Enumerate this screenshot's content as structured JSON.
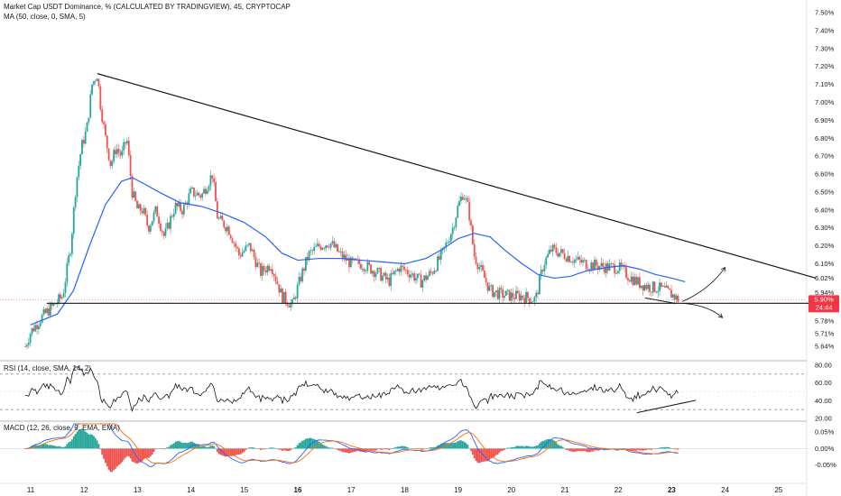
{
  "header": {
    "main_title": "Market Cap USDT Dominance, % (CALCULATED BY TRADINGVIEW), 45, CRYPTOCAP",
    "ma_label": "MA (50, close, 0, SMA, 5)",
    "rsi_label": "RSI (14, close, SMA, 14, 2)",
    "macd_label": "MACD (12, 26, close, 9, EMA, EMA)"
  },
  "price_tag": {
    "value": "5.90%",
    "countdown": "24:44",
    "color": "#f23645"
  },
  "colors": {
    "up": "#26a69a",
    "down": "#ef5350",
    "ma": "#2962ff",
    "trendline": "#131722",
    "rsi": "#131722",
    "macd": "#2962ff",
    "signal": "#ff6d00",
    "hist_up": "#26a69a",
    "hist_down": "#ef5350"
  },
  "chart_data": [
    {
      "type": "candlestick",
      "title": "Market Cap USDT Dominance, % (CALCULATED BY TRADINGVIEW), 45, CRYPTOCAP",
      "x_ticks": [
        "11",
        "12",
        "13",
        "14",
        "15",
        "16",
        "17",
        "18",
        "19",
        "20",
        "21",
        "22",
        "23",
        "24",
        "25"
      ],
      "bold_ticks": [
        "16",
        "23"
      ],
      "y_ticks": [
        "7.50%",
        "7.40%",
        "7.30%",
        "7.20%",
        "7.10%",
        "7.00%",
        "6.90%",
        "6.80%",
        "6.70%",
        "6.60%",
        "6.50%",
        "6.40%",
        "6.30%",
        "6.20%",
        "6.10%",
        "6.02%",
        "5.94%",
        "5.86%",
        "5.78%",
        "5.71%",
        "5.64%"
      ],
      "ylim": [
        5.6,
        7.52
      ],
      "close_path": [
        [
          10.9,
          5.64
        ],
        [
          11.0,
          5.72
        ],
        [
          11.2,
          5.8
        ],
        [
          11.4,
          5.86
        ],
        [
          11.6,
          5.92
        ],
        [
          11.75,
          6.2
        ],
        [
          11.85,
          6.55
        ],
        [
          11.95,
          6.75
        ],
        [
          12.05,
          6.85
        ],
        [
          12.15,
          7.1
        ],
        [
          12.25,
          7.16
        ],
        [
          12.3,
          7.0
        ],
        [
          12.4,
          6.8
        ],
        [
          12.5,
          6.65
        ],
        [
          12.6,
          6.75
        ],
        [
          12.7,
          6.7
        ],
        [
          12.8,
          6.8
        ],
        [
          12.9,
          6.5
        ],
        [
          13.0,
          6.4
        ],
        [
          13.1,
          6.4
        ],
        [
          13.2,
          6.3
        ],
        [
          13.35,
          6.4
        ],
        [
          13.5,
          6.25
        ],
        [
          13.7,
          6.42
        ],
        [
          13.85,
          6.4
        ],
        [
          14.0,
          6.5
        ],
        [
          14.2,
          6.48
        ],
        [
          14.4,
          6.6
        ],
        [
          14.5,
          6.35
        ],
        [
          14.7,
          6.3
        ],
        [
          14.9,
          6.15
        ],
        [
          15.1,
          6.2
        ],
        [
          15.3,
          6.05
        ],
        [
          15.5,
          6.1
        ],
        [
          15.7,
          5.92
        ],
        [
          15.9,
          5.87
        ],
        [
          16.05,
          6.02
        ],
        [
          16.2,
          6.15
        ],
        [
          16.4,
          6.2
        ],
        [
          16.6,
          6.22
        ],
        [
          16.8,
          6.15
        ],
        [
          17.0,
          6.1
        ],
        [
          17.2,
          6.1
        ],
        [
          17.5,
          6.05
        ],
        [
          17.7,
          6.0
        ],
        [
          17.9,
          6.08
        ],
        [
          18.1,
          6.05
        ],
        [
          18.3,
          6.0
        ],
        [
          18.5,
          6.05
        ],
        [
          18.7,
          6.15
        ],
        [
          18.9,
          6.3
        ],
        [
          19.0,
          6.42
        ],
        [
          19.1,
          6.5
        ],
        [
          19.2,
          6.4
        ],
        [
          19.3,
          6.15
        ],
        [
          19.45,
          6.05
        ],
        [
          19.6,
          5.95
        ],
        [
          19.8,
          5.93
        ],
        [
          20.0,
          5.92
        ],
        [
          20.2,
          5.92
        ],
        [
          20.45,
          5.9
        ],
        [
          20.6,
          6.1
        ],
        [
          20.75,
          6.18
        ],
        [
          21.0,
          6.15
        ],
        [
          21.2,
          6.12
        ],
        [
          21.4,
          6.1
        ],
        [
          21.6,
          6.09
        ],
        [
          21.8,
          6.08
        ],
        [
          22.0,
          6.08
        ],
        [
          22.2,
          6.03
        ],
        [
          22.4,
          5.99
        ],
        [
          22.6,
          5.97
        ],
        [
          22.8,
          5.96
        ],
        [
          23.0,
          5.93
        ],
        [
          23.12,
          5.9
        ]
      ],
      "ma50_path": [
        [
          11.0,
          5.76
        ],
        [
          11.5,
          5.82
        ],
        [
          11.8,
          5.95
        ],
        [
          12.1,
          6.2
        ],
        [
          12.4,
          6.43
        ],
        [
          12.7,
          6.56
        ],
        [
          12.9,
          6.58
        ],
        [
          13.1,
          6.55
        ],
        [
          13.4,
          6.5
        ],
        [
          13.8,
          6.44
        ],
        [
          14.2,
          6.42
        ],
        [
          14.6,
          6.38
        ],
        [
          15.0,
          6.33
        ],
        [
          15.4,
          6.25
        ],
        [
          15.7,
          6.16
        ],
        [
          16.0,
          6.12
        ],
        [
          16.4,
          6.13
        ],
        [
          16.8,
          6.13
        ],
        [
          17.2,
          6.12
        ],
        [
          17.6,
          6.11
        ],
        [
          18.0,
          6.1
        ],
        [
          18.4,
          6.13
        ],
        [
          18.7,
          6.18
        ],
        [
          19.0,
          6.24
        ],
        [
          19.3,
          6.27
        ],
        [
          19.6,
          6.25
        ],
        [
          19.9,
          6.17
        ],
        [
          20.2,
          6.1
        ],
        [
          20.5,
          6.04
        ],
        [
          20.8,
          6.02
        ],
        [
          21.1,
          6.03
        ],
        [
          21.4,
          6.06
        ],
        [
          21.8,
          6.08
        ],
        [
          22.1,
          6.09
        ],
        [
          22.4,
          6.07
        ],
        [
          22.7,
          6.04
        ],
        [
          23.0,
          6.02
        ],
        [
          23.25,
          6.0
        ]
      ],
      "descending_trendline": [
        [
          12.25,
          7.16
        ],
        [
          25.7,
          6.02
        ]
      ],
      "support_line": [
        [
          11.3,
          5.88
        ],
        [
          25.7,
          5.88
        ]
      ],
      "wedge_support": [
        [
          22.5,
          5.91
        ],
        [
          23.05,
          5.88
        ]
      ],
      "projection_up_arrow": [
        [
          23.2,
          5.89
        ],
        [
          24.0,
          6.08
        ]
      ],
      "projection_down_arrow": [
        [
          23.2,
          5.88
        ],
        [
          23.95,
          5.8
        ]
      ]
    },
    {
      "type": "line",
      "title": "RSI (14, close, SMA, 14, 2)",
      "y_ticks": [
        "80.00",
        "60.00",
        "40.00",
        "20.00"
      ],
      "ylim": [
        18,
        82
      ],
      "band": [
        30,
        70
      ],
      "trendline": [
        [
          22.35,
          26.5
        ],
        [
          23.45,
          40.5
        ]
      ]
    },
    {
      "type": "bar",
      "title": "MACD (12, 26, close, 9, EMA, EMA)",
      "y_ticks": [
        "0.05%",
        "0.00%",
        "-0.05%"
      ],
      "ylim": [
        -0.1,
        0.075
      ]
    }
  ]
}
